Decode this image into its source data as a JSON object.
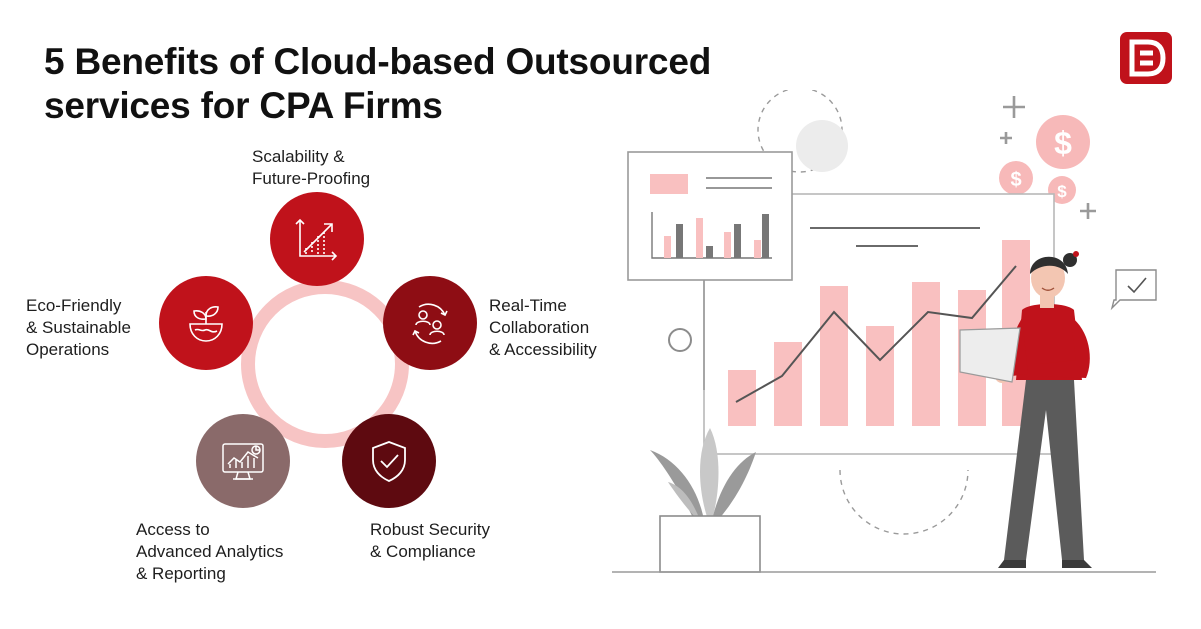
{
  "title": {
    "line1": "5 Benefits of Cloud-based Outsourced",
    "line2": "services for CPA Firms"
  },
  "benefits": [
    {
      "id": "scalability",
      "line1": "Scalability &",
      "line2": "Future-Proofing",
      "line3": "",
      "icon": "growth-chart-icon",
      "color": "#c0121b"
    },
    {
      "id": "collaboration",
      "line1": "Real-Time",
      "line2": "Collaboration",
      "line3": "& Accessibility",
      "icon": "people-sync-icon",
      "color": "#8e0d14"
    },
    {
      "id": "security",
      "line1": "Robust Security",
      "line2": "& Compliance",
      "line3": "",
      "icon": "shield-check-icon",
      "color": "#5e0a10"
    },
    {
      "id": "analytics",
      "line1": "Access to",
      "line2": "Advanced Analytics",
      "line3": "& Reporting",
      "icon": "analytics-monitor-icon",
      "color": "#8a6a6a"
    },
    {
      "id": "eco",
      "line1": "Eco-Friendly",
      "line2": "& Sustainable",
      "line3": "Operations",
      "icon": "plant-globe-icon",
      "color": "#c0121b"
    }
  ],
  "colors": {
    "accent": "#c0121b",
    "ring": "#f7c4c4",
    "illustration_pink": "#f9c0c0",
    "illustration_gray": "#8c8c8c"
  },
  "illustration": {
    "currency_symbol": "$"
  }
}
